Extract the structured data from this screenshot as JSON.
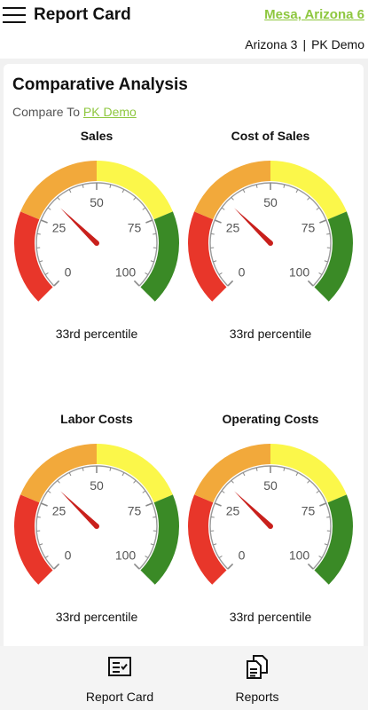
{
  "header": {
    "title": "Report Card",
    "location_link": "Mesa, Arizona 6",
    "store_name": "Arizona 3",
    "separator": "|",
    "compare_name": "PK Demo"
  },
  "card": {
    "title": "Comparative Analysis",
    "compare_prefix": "Compare To",
    "compare_link": "PK Demo"
  },
  "colors": {
    "accent_green": "#8ec73f",
    "band_red": "#e8362a",
    "band_orange": "#f2a93b",
    "band_yellow": "#fbf74a",
    "band_green": "#3a8a26",
    "needle": "#c9201c"
  },
  "gauges": [
    {
      "title": "Sales",
      "value": 33,
      "caption": "33rd percentile",
      "ticks": [
        "0",
        "25",
        "50",
        "75",
        "100"
      ]
    },
    {
      "title": "Cost of Sales",
      "value": 33,
      "caption": "33rd percentile",
      "ticks": [
        "0",
        "25",
        "50",
        "75",
        "100"
      ]
    },
    {
      "title": "Labor Costs",
      "value": 33,
      "caption": "33rd percentile",
      "ticks": [
        "0",
        "25",
        "50",
        "75",
        "100"
      ]
    },
    {
      "title": "Operating Costs",
      "value": 33,
      "caption": "33rd percentile",
      "ticks": [
        "0",
        "25",
        "50",
        "75",
        "100"
      ]
    }
  ],
  "nav": {
    "items": [
      {
        "label": "Report Card",
        "icon": "report-card-icon"
      },
      {
        "label": "Reports",
        "icon": "reports-icon"
      }
    ]
  }
}
